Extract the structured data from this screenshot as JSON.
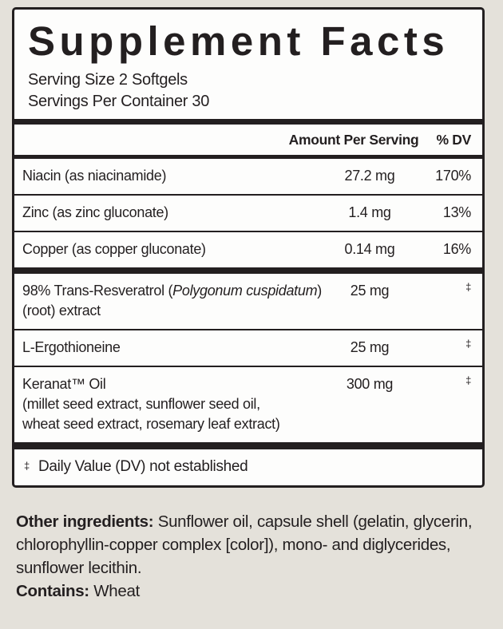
{
  "page": {
    "background_color": "#e4e1da",
    "panel_background_color": "#fdfdfc",
    "ink_color": "#231f20"
  },
  "panel": {
    "title": "Supplement Facts",
    "serving_size": "Serving Size 2 Softgels",
    "servings_per_container": "Servings Per Container 30",
    "header": {
      "amount_label": "Amount Per Serving",
      "dv_label": "% DV"
    },
    "rows": [
      {
        "name": "Niacin (as niacinamide)",
        "amount": "27.2 mg",
        "dv": "170%"
      },
      {
        "name": "Zinc (as zinc gluconate)",
        "amount": "1.4 mg",
        "dv": "13%"
      },
      {
        "name": "Copper (as copper gluconate)",
        "amount": "0.14 mg",
        "dv": "16%"
      },
      {
        "name_prefix": "98% Trans-Resveratrol (",
        "name_italic": "Polygonum cuspidatum",
        "name_suffix": ")",
        "detail_1": "(root) extract",
        "amount": "25 mg",
        "dv": "‡"
      },
      {
        "name": "L-Ergothioneine",
        "amount": "25 mg",
        "dv": "‡"
      },
      {
        "name": "Keranat™ Oil",
        "detail_1": "(millet seed extract, sunflower seed oil,",
        "detail_2": "wheat seed extract, rosemary leaf extract)",
        "amount": "300 mg",
        "dv": "‡"
      }
    ],
    "footnote": {
      "symbol": "‡",
      "text": "Daily Value (DV) not established"
    }
  },
  "other_ingredients": {
    "label": "Other ingredients:",
    "text": " Sunflower oil, capsule shell  (gelatin, glycerin, chlorophyllin-copper complex [color]), mono- and diglycerides, sunflower lecithin."
  },
  "contains": {
    "label": "Contains:",
    "text": " Wheat"
  }
}
